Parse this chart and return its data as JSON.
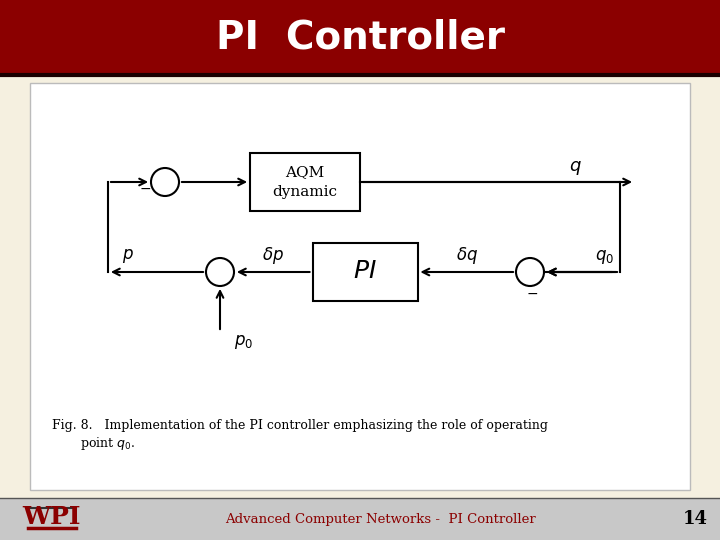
{
  "title": "PI  Controller",
  "title_bg_color": "#8B0000",
  "title_text_color": "#FFFFFF",
  "slide_bg_color": "#F5F0E0",
  "content_bg_color": "#FFFFFF",
  "footer_bg_color": "#C8C8C8",
  "footer_text": "Advanced Computer Networks -  PI Controller",
  "footer_text_color": "#8B0000",
  "page_number": "14",
  "wpi_color": "#8B0000"
}
